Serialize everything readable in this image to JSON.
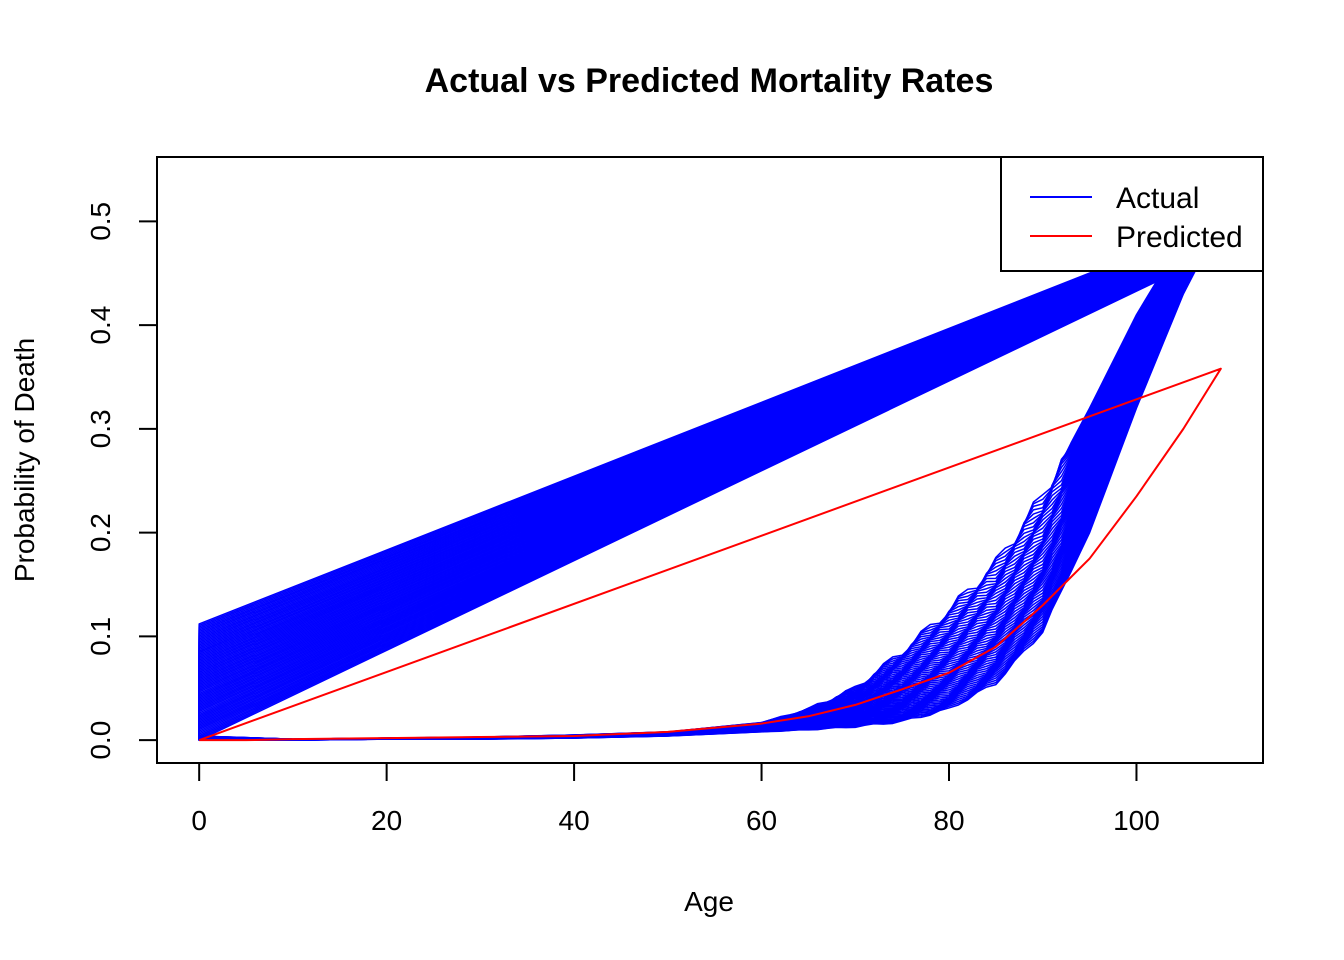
{
  "chart_data": {
    "type": "line",
    "title": "Actual vs Predicted Mortality Rates",
    "xlabel": "Age",
    "ylabel": "Probability of Death",
    "xlim": [
      -4.5,
      113.5
    ],
    "ylim": [
      -0.022,
      0.562
    ],
    "x_ticks": [
      0,
      20,
      40,
      60,
      80,
      100
    ],
    "y_ticks": [
      0.0,
      0.1,
      0.2,
      0.3,
      0.4,
      0.5
    ],
    "x_tick_labels": [
      "0",
      "20",
      "40",
      "60",
      "80",
      "100"
    ],
    "y_tick_labels": [
      "0.0",
      "0.1",
      "0.2",
      "0.3",
      "0.4",
      "0.5"
    ],
    "grid": false,
    "legend": {
      "position": "top-right",
      "entries": [
        {
          "label": "Actual",
          "color": "#0000FF"
        },
        {
          "label": "Predicted",
          "color": "#FF0000"
        }
      ]
    },
    "series": [
      {
        "name": "Actual",
        "color": "#0000FF",
        "description_note": "",
        "band_low_curve": {
          "x": [
            0,
            10,
            20,
            30,
            40,
            50,
            60,
            65,
            70,
            75,
            80,
            85,
            90,
            95,
            100,
            105,
            109
          ],
          "y": [
            0.0,
            0.0,
            0.001,
            0.001,
            0.002,
            0.004,
            0.008,
            0.01,
            0.013,
            0.018,
            0.03,
            0.055,
            0.105,
            0.2,
            0.32,
            0.43,
            0.5
          ]
        },
        "band_high_curve": {
          "x": [
            0,
            10,
            20,
            30,
            40,
            50,
            60,
            65,
            70,
            75,
            80,
            85,
            90,
            95,
            100,
            104,
            109
          ],
          "y": [
            0.004,
            0.001,
            0.002,
            0.003,
            0.005,
            0.008,
            0.017,
            0.03,
            0.05,
            0.085,
            0.125,
            0.17,
            0.235,
            0.32,
            0.41,
            0.47,
            0.5
          ]
        },
        "band_return_start": [
          0.0,
          0.112
        ],
        "band_return_end": [
          109,
          0.5
        ]
      },
      {
        "name": "Predicted",
        "color": "#FF0000",
        "x": [
          0,
          5,
          10,
          20,
          30,
          40,
          50,
          55,
          60,
          65,
          70,
          75,
          80,
          85,
          90,
          95,
          100,
          105,
          109,
          0
        ],
        "y": [
          0.0,
          0.0,
          0.001,
          0.002,
          0.003,
          0.004,
          0.008,
          0.012,
          0.016,
          0.023,
          0.034,
          0.049,
          0.065,
          0.09,
          0.13,
          0.175,
          0.235,
          0.3,
          0.358,
          0.0
        ]
      }
    ]
  }
}
